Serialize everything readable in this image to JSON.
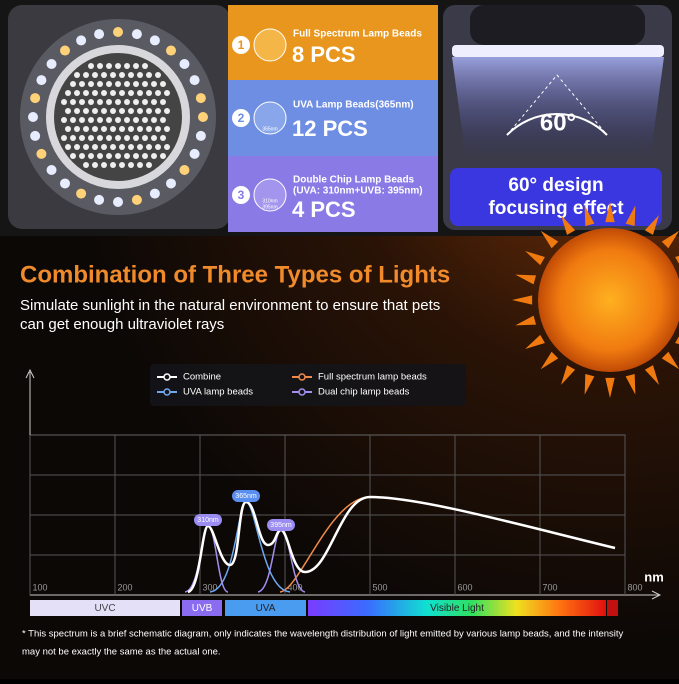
{
  "features": [
    {
      "number": "1",
      "title": "Full Spectrum Lamp Beads",
      "count": "8 PCS"
    },
    {
      "number": "2",
      "title": "UVA Lamp Beads(365nm)",
      "icon_label": "365nm",
      "count": "12 PCS"
    },
    {
      "number": "3",
      "title": "Double Chip Lamp Beads",
      "subtitle": "(UVA: 310nm+UVB: 395nm)",
      "icon_label": [
        "310nm",
        "395nm"
      ],
      "count": "4 PCS"
    }
  ],
  "angle": {
    "label": "60°",
    "caption": [
      "60° design",
      "focusing effect"
    ]
  },
  "heading": {
    "title": "Combination of Three Types of Lights",
    "subtitle": [
      "Simulate sunlight in the natural environment to ensure that pets",
      "can get enough ultraviolet rays"
    ]
  },
  "chart_data": {
    "type": "line",
    "series": [
      {
        "name": "Combine",
        "color": "#ffffff"
      },
      {
        "name": "Full spectrum lamp beads",
        "color": "#f08a4b"
      },
      {
        "name": "UVA lamp beads",
        "color": "#6fa8f0"
      },
      {
        "name": "Dual chip lamp beads",
        "color": "#a48ef0"
      }
    ],
    "xlabel": "nm",
    "xlim": [
      100,
      800
    ],
    "xticks": [
      100,
      200,
      300,
      400,
      500,
      600,
      700,
      800
    ],
    "peak_labels": [
      "310nm",
      "365nm",
      "395nm"
    ],
    "bands": [
      "UVC",
      "UVB",
      "UVA",
      "Visible Light"
    ]
  },
  "footnote": [
    "* This spectrum is a brief schematic diagram, only indicates the wavelength distribution of light emitted by various lamp beads, and the intensity",
    "may not be exactly the same as the actual one."
  ]
}
